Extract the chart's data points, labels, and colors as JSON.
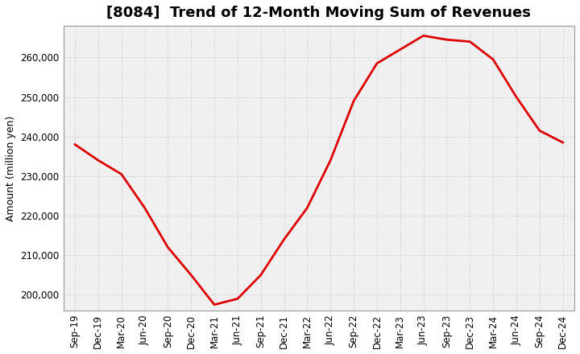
{
  "title": "[8084]  Trend of 12-Month Moving Sum of Revenues",
  "ylabel": "Amount (million yen)",
  "line_color": "#dd0000",
  "background_color": "#ffffff",
  "plot_bg_color": "#f0f0f0",
  "grid_color": "#bbbbbb",
  "x_labels": [
    "Sep-19",
    "Dec-19",
    "Mar-20",
    "Jun-20",
    "Sep-20",
    "Dec-20",
    "Mar-21",
    "Jun-21",
    "Sep-21",
    "Dec-21",
    "Mar-22",
    "Jun-22",
    "Sep-22",
    "Dec-22",
    "Mar-23",
    "Jun-23",
    "Sep-23",
    "Dec-23",
    "Mar-24",
    "Jun-24",
    "Sep-24",
    "Dec-24"
  ],
  "values": [
    238000,
    234000,
    230500,
    222000,
    212000,
    205000,
    197500,
    199000,
    205000,
    214000,
    222000,
    234000,
    249000,
    258500,
    262000,
    265500,
    264500,
    264000,
    259500,
    250000,
    241500,
    238500
  ],
  "ylim": [
    196000,
    268000
  ],
  "yticks": [
    200000,
    210000,
    220000,
    230000,
    240000,
    250000,
    260000
  ],
  "title_fontsize": 13,
  "label_fontsize": 9,
  "tick_fontsize": 8.5
}
